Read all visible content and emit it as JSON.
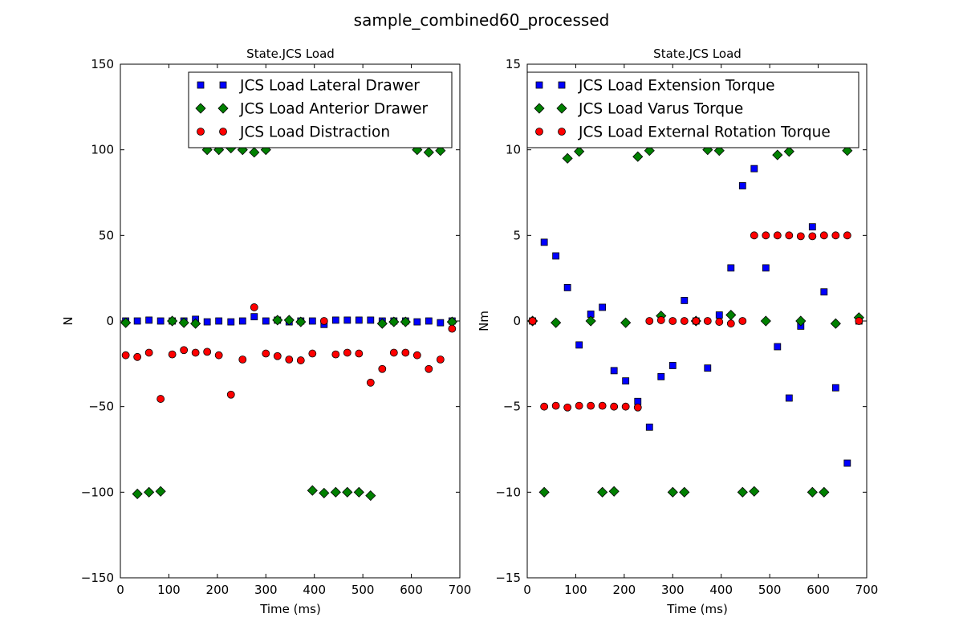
{
  "figure": {
    "suptitle": "sample_combined60_processed"
  },
  "colors": {
    "square": "#0000ff",
    "diamond": "#008000",
    "circle": "#ff0000",
    "edge": "#000000"
  },
  "chart_data": [
    {
      "type": "scatter",
      "title": "State.JCS Load",
      "xlabel": "Time (ms)",
      "ylabel": "N",
      "xlim": [
        0,
        700
      ],
      "ylim": [
        -150,
        150
      ],
      "xticks": [
        "0",
        "100",
        "200",
        "300",
        "400",
        "500",
        "600",
        "700"
      ],
      "yticks": [
        "−150",
        "−100",
        "−50",
        "0",
        "50",
        "100",
        "150"
      ],
      "grid": false,
      "legend_position": "upper-right",
      "series": [
        {
          "name": "JCS Load Lateral Drawer",
          "marker": "square",
          "x": [
            11,
            35,
            59,
            83,
            107,
            131,
            155,
            179,
            203,
            228,
            252,
            276,
            300,
            324,
            348,
            372,
            396,
            420,
            444,
            468,
            492,
            516,
            540,
            564,
            588,
            612,
            636,
            660,
            684
          ],
          "y": [
            0,
            0,
            0.5,
            0,
            0,
            0,
            1,
            -0.5,
            0,
            -0.5,
            0,
            2.5,
            0,
            0.5,
            -0.5,
            0,
            0,
            -2,
            0.5,
            0.5,
            0.5,
            0.5,
            0,
            0,
            0,
            -0.5,
            0,
            -1,
            0
          ]
        },
        {
          "name": "JCS Load Anterior Drawer",
          "marker": "diamond",
          "x": [
            11,
            35,
            59,
            83,
            107,
            131,
            155,
            179,
            203,
            228,
            252,
            276,
            300,
            324,
            348,
            372,
            396,
            420,
            444,
            468,
            492,
            516,
            540,
            564,
            588,
            612,
            636,
            660,
            684
          ],
          "y": [
            -1,
            -101,
            -100,
            -99.5,
            0,
            -1,
            -1.5,
            100,
            100,
            101,
            100,
            98.5,
            100,
            0.5,
            0.5,
            -0.5,
            -99,
            -100.5,
            -100,
            -100,
            -100,
            -102,
            -1.5,
            -0.5,
            -0.5,
            100,
            98.5,
            99.5,
            -0.5
          ]
        },
        {
          "name": "JCS Load Distraction",
          "marker": "circle",
          "x": [
            11,
            35,
            59,
            83,
            107,
            131,
            155,
            179,
            203,
            228,
            252,
            276,
            300,
            324,
            348,
            372,
            396,
            420,
            444,
            468,
            492,
            516,
            540,
            564,
            588,
            612,
            636,
            660,
            684
          ],
          "y": [
            -20,
            -21,
            -18.5,
            -45.5,
            -19.5,
            -17,
            -18.5,
            -18,
            -20,
            -43,
            -22.5,
            8,
            -19,
            -20.5,
            -22.5,
            -23,
            -19,
            0,
            -19.5,
            -18.5,
            -19,
            -36,
            -28,
            -18.5,
            -18.5,
            -20,
            -28,
            -22.5,
            -4.5
          ]
        }
      ]
    },
    {
      "type": "scatter",
      "title": "State.JCS Load",
      "xlabel": "Time (ms)",
      "ylabel": "Nm",
      "xlim": [
        0,
        700
      ],
      "ylim": [
        -15,
        15
      ],
      "xticks": [
        "0",
        "100",
        "200",
        "300",
        "400",
        "500",
        "600",
        "700"
      ],
      "yticks": [
        "−15",
        "−10",
        "−5",
        "0",
        "5",
        "10",
        "15"
      ],
      "grid": false,
      "legend_position": "upper-left",
      "series": [
        {
          "name": "JCS Load Extension Torque",
          "marker": "square",
          "x": [
            11,
            35,
            59,
            83,
            107,
            131,
            155,
            179,
            203,
            228,
            252,
            276,
            300,
            324,
            348,
            372,
            396,
            420,
            444,
            468,
            492,
            516,
            540,
            564,
            588,
            612,
            636,
            660,
            684
          ],
          "y": [
            0,
            4.6,
            3.8,
            1.95,
            -1.4,
            0.4,
            0.8,
            -2.9,
            -3.5,
            -4.7,
            -6.2,
            -3.25,
            -2.6,
            1.2,
            0,
            -2.75,
            0.35,
            3.1,
            7.9,
            8.9,
            3.1,
            -1.5,
            -4.5,
            -0.3,
            5.5,
            1.7,
            -3.9,
            -8.3,
            0
          ]
        },
        {
          "name": "JCS Load Varus Torque",
          "marker": "diamond",
          "x": [
            11,
            35,
            59,
            83,
            107,
            131,
            155,
            179,
            203,
            228,
            252,
            276,
            300,
            324,
            348,
            372,
            396,
            420,
            444,
            468,
            492,
            516,
            540,
            564,
            588,
            612,
            636,
            660,
            684
          ],
          "y": [
            0,
            -10,
            -0.1,
            9.5,
            9.9,
            0,
            -10,
            -9.95,
            -0.1,
            9.6,
            9.95,
            0.3,
            -10,
            -10,
            0,
            10,
            9.95,
            0.35,
            -10,
            -9.95,
            0,
            9.7,
            9.9,
            0,
            -10,
            -10,
            -0.15,
            9.95,
            0.2
          ]
        },
        {
          "name": "JCS Load External Rotation Torque",
          "marker": "circle",
          "x": [
            11,
            35,
            59,
            83,
            107,
            131,
            155,
            179,
            203,
            228,
            252,
            276,
            300,
            324,
            348,
            372,
            396,
            420,
            444,
            468,
            492,
            516,
            540,
            564,
            588,
            612,
            636,
            660,
            684
          ],
          "y": [
            0,
            -5,
            -4.95,
            -5.05,
            -4.95,
            -4.95,
            -4.95,
            -5,
            -5,
            -5.05,
            0,
            0.05,
            0,
            0,
            0,
            0,
            -0.05,
            -0.15,
            0,
            5,
            5,
            5,
            5,
            4.95,
            4.95,
            5,
            5,
            5,
            0
          ]
        }
      ]
    }
  ]
}
